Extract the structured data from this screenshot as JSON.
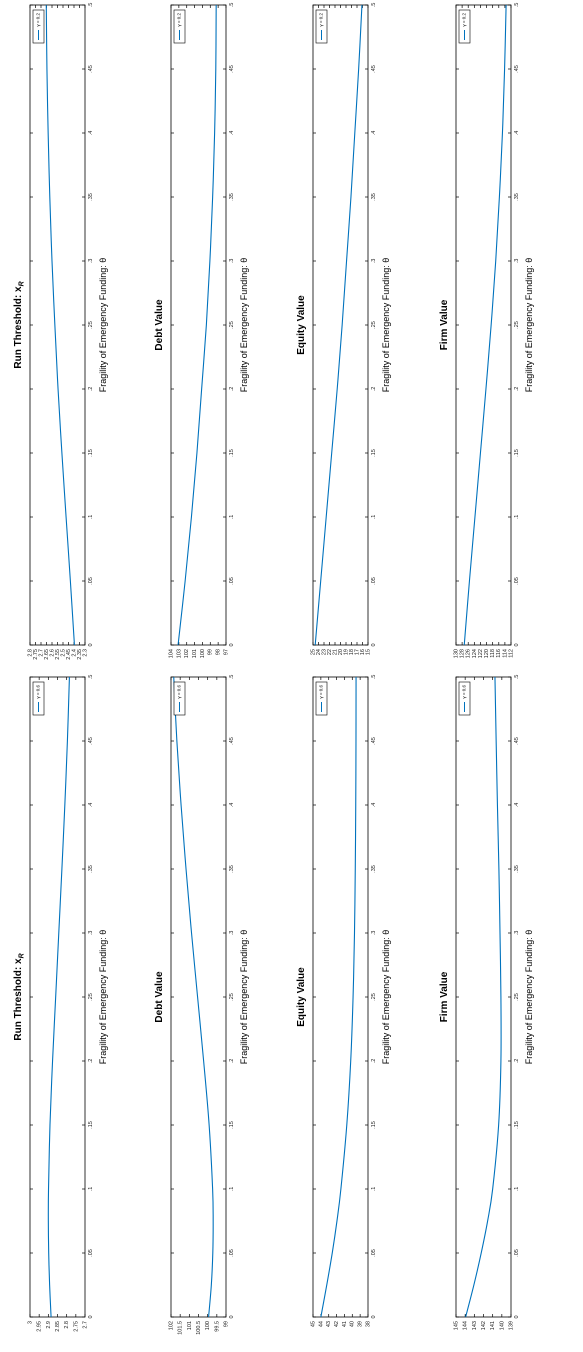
{
  "style": {
    "line_color": "#0072BD"
  },
  "chart_data": [
    {
      "type": "line",
      "title": "Run Threshold: x_R",
      "title_main": "Run Threshold: x",
      "title_sub": "R",
      "xlabel": "Fragility of Emergency Funding: θ",
      "legend": "γ = 0.2",
      "xlim": [
        0,
        0.5
      ],
      "ylim": [
        2.3,
        2.8
      ],
      "xticks": [
        0,
        0.05,
        0.1,
        0.15,
        0.2,
        0.25,
        0.3,
        0.35,
        0.4,
        0.45,
        0.5
      ],
      "yticks": [
        2.3,
        2.35,
        2.4,
        2.45,
        2.5,
        2.55,
        2.6,
        2.65,
        2.7,
        2.75,
        2.8
      ],
      "x": [
        0,
        0.05,
        0.1,
        0.15,
        0.2,
        0.25,
        0.3,
        0.35,
        0.4,
        0.45,
        0.5
      ],
      "y": [
        2.396,
        2.433,
        2.472,
        2.51,
        2.545,
        2.574,
        2.6,
        2.62,
        2.635,
        2.646,
        2.652
      ]
    },
    {
      "type": "line",
      "title": "Debt Value",
      "title_main": "Debt Value",
      "title_sub": "",
      "xlabel": "Fragility of Emergency Funding: θ",
      "legend": "γ = 0.2",
      "xlim": [
        0,
        0.5
      ],
      "ylim": [
        97,
        104
      ],
      "xticks": [
        0,
        0.05,
        0.1,
        0.15,
        0.2,
        0.25,
        0.3,
        0.35,
        0.4,
        0.45,
        0.5
      ],
      "yticks": [
        97,
        98,
        99,
        100,
        101,
        102,
        103,
        104
      ],
      "x": [
        0,
        0.05,
        0.1,
        0.15,
        0.2,
        0.25,
        0.3,
        0.35,
        0.4,
        0.45,
        0.5
      ],
      "y": [
        103.1,
        102.2,
        101.4,
        100.7,
        100.1,
        99.5,
        99.05,
        98.7,
        98.45,
        98.3,
        98.25
      ]
    },
    {
      "type": "line",
      "title": "Equity Value",
      "title_main": "Equity Value",
      "title_sub": "",
      "xlabel": "Fragility of Emergency Funding: θ",
      "legend": "γ = 0.2",
      "xlim": [
        0,
        0.5
      ],
      "ylim": [
        15,
        25
      ],
      "xticks": [
        0,
        0.05,
        0.1,
        0.15,
        0.2,
        0.25,
        0.3,
        0.35,
        0.4,
        0.45,
        0.5
      ],
      "yticks": [
        15,
        16,
        17,
        18,
        19,
        20,
        21,
        22,
        23,
        24,
        25
      ],
      "x": [
        0,
        0.05,
        0.1,
        0.15,
        0.2,
        0.25,
        0.3,
        0.35,
        0.4,
        0.45,
        0.5
      ],
      "y": [
        24.6,
        23.6,
        22.6,
        21.6,
        20.6,
        19.7,
        18.9,
        18.1,
        17.4,
        16.7,
        16.1
      ]
    },
    {
      "type": "line",
      "title": "Firm Value",
      "title_main": "Firm Value",
      "title_sub": "",
      "xlabel": "Fragility of Emergency Funding: θ",
      "legend": "γ = 0.2",
      "xlim": [
        0,
        0.5
      ],
      "ylim": [
        112,
        130
      ],
      "xticks": [
        0,
        0.05,
        0.1,
        0.15,
        0.2,
        0.25,
        0.3,
        0.35,
        0.4,
        0.45,
        0.5
      ],
      "yticks": [
        112,
        114,
        116,
        118,
        120,
        122,
        124,
        126,
        128,
        130
      ],
      "x": [
        0,
        0.05,
        0.1,
        0.15,
        0.2,
        0.25,
        0.3,
        0.35,
        0.4,
        0.45,
        0.5
      ],
      "y": [
        127.3,
        125.6,
        123.8,
        122.0,
        120.2,
        118.5,
        117.0,
        115.8,
        114.8,
        114.1,
        113.6
      ]
    },
    {
      "type": "line",
      "title": "Run Threshold: x_R",
      "title_main": "Run Threshold: x",
      "title_sub": "R",
      "xlabel": "Fragility of Emergency Funding: θ",
      "legend": "γ = 0.6",
      "xlim": [
        0,
        0.5
      ],
      "ylim": [
        2.7,
        3
      ],
      "xticks": [
        0,
        0.05,
        0.1,
        0.15,
        0.2,
        0.25,
        0.3,
        0.35,
        0.4,
        0.45,
        0.5
      ],
      "yticks": [
        2.7,
        2.75,
        2.8,
        2.85,
        2.9,
        2.95,
        3
      ],
      "x": [
        0,
        0.025,
        0.05,
        0.075,
        0.1,
        0.15,
        0.2,
        0.25,
        0.3,
        0.35,
        0.4,
        0.45,
        0.5
      ],
      "y": [
        2.885,
        2.893,
        2.898,
        2.9,
        2.899,
        2.891,
        2.877,
        2.86,
        2.843,
        2.826,
        2.81,
        2.796,
        2.785
      ]
    },
    {
      "type": "line",
      "title": "Debt Value",
      "title_main": "Debt Value",
      "title_sub": "",
      "xlabel": "Fragility of Emergency Funding: θ",
      "legend": "γ = 0.6",
      "xlim": [
        0,
        0.5
      ],
      "ylim": [
        99,
        102
      ],
      "xticks": [
        0,
        0.05,
        0.1,
        0.15,
        0.2,
        0.25,
        0.3,
        0.35,
        0.4,
        0.45,
        0.5
      ],
      "yticks": [
        99,
        99.5,
        100,
        100.5,
        101,
        101.5,
        102
      ],
      "x": [
        0,
        0.025,
        0.05,
        0.075,
        0.1,
        0.15,
        0.2,
        0.25,
        0.3,
        0.35,
        0.4,
        0.45,
        0.5
      ],
      "y": [
        99.95,
        99.8,
        99.72,
        99.7,
        99.73,
        99.92,
        100.22,
        100.55,
        100.88,
        101.18,
        101.45,
        101.68,
        101.85
      ]
    },
    {
      "type": "line",
      "title": "Equity Value",
      "title_main": "Equity Value",
      "title_sub": "",
      "xlabel": "Fragility of Emergency Funding: θ",
      "legend": "γ = 0.6",
      "xlim": [
        0,
        0.5
      ],
      "ylim": [
        38,
        45
      ],
      "xticks": [
        0,
        0.05,
        0.1,
        0.15,
        0.2,
        0.25,
        0.3,
        0.35,
        0.4,
        0.45,
        0.5
      ],
      "yticks": [
        38,
        39,
        40,
        41,
        42,
        43,
        44,
        45
      ],
      "x": [
        0,
        0.025,
        0.05,
        0.075,
        0.1,
        0.15,
        0.2,
        0.25,
        0.3,
        0.35,
        0.4,
        0.45,
        0.5
      ],
      "y": [
        44.0,
        43.25,
        42.55,
        41.95,
        41.45,
        40.7,
        40.2,
        39.9,
        39.72,
        39.62,
        39.56,
        39.53,
        39.52
      ]
    },
    {
      "type": "line",
      "title": "Firm Value",
      "title_main": "Firm Value",
      "title_sub": "",
      "xlabel": "Fragility of Emergency Funding: θ",
      "legend": "γ = 0.6",
      "xlim": [
        0,
        0.5
      ],
      "ylim": [
        139,
        145
      ],
      "xticks": [
        0,
        0.05,
        0.1,
        0.15,
        0.2,
        0.25,
        0.3,
        0.35,
        0.4,
        0.45,
        0.5
      ],
      "yticks": [
        139,
        140,
        141,
        142,
        143,
        144,
        145
      ],
      "x": [
        0,
        0.025,
        0.05,
        0.075,
        0.1,
        0.15,
        0.2,
        0.25,
        0.3,
        0.35,
        0.4,
        0.45,
        0.5
      ],
      "y": [
        143.95,
        143.05,
        142.25,
        141.55,
        141.0,
        140.35,
        140.1,
        140.1,
        140.2,
        140.32,
        140.48,
        140.62,
        140.75
      ]
    }
  ]
}
